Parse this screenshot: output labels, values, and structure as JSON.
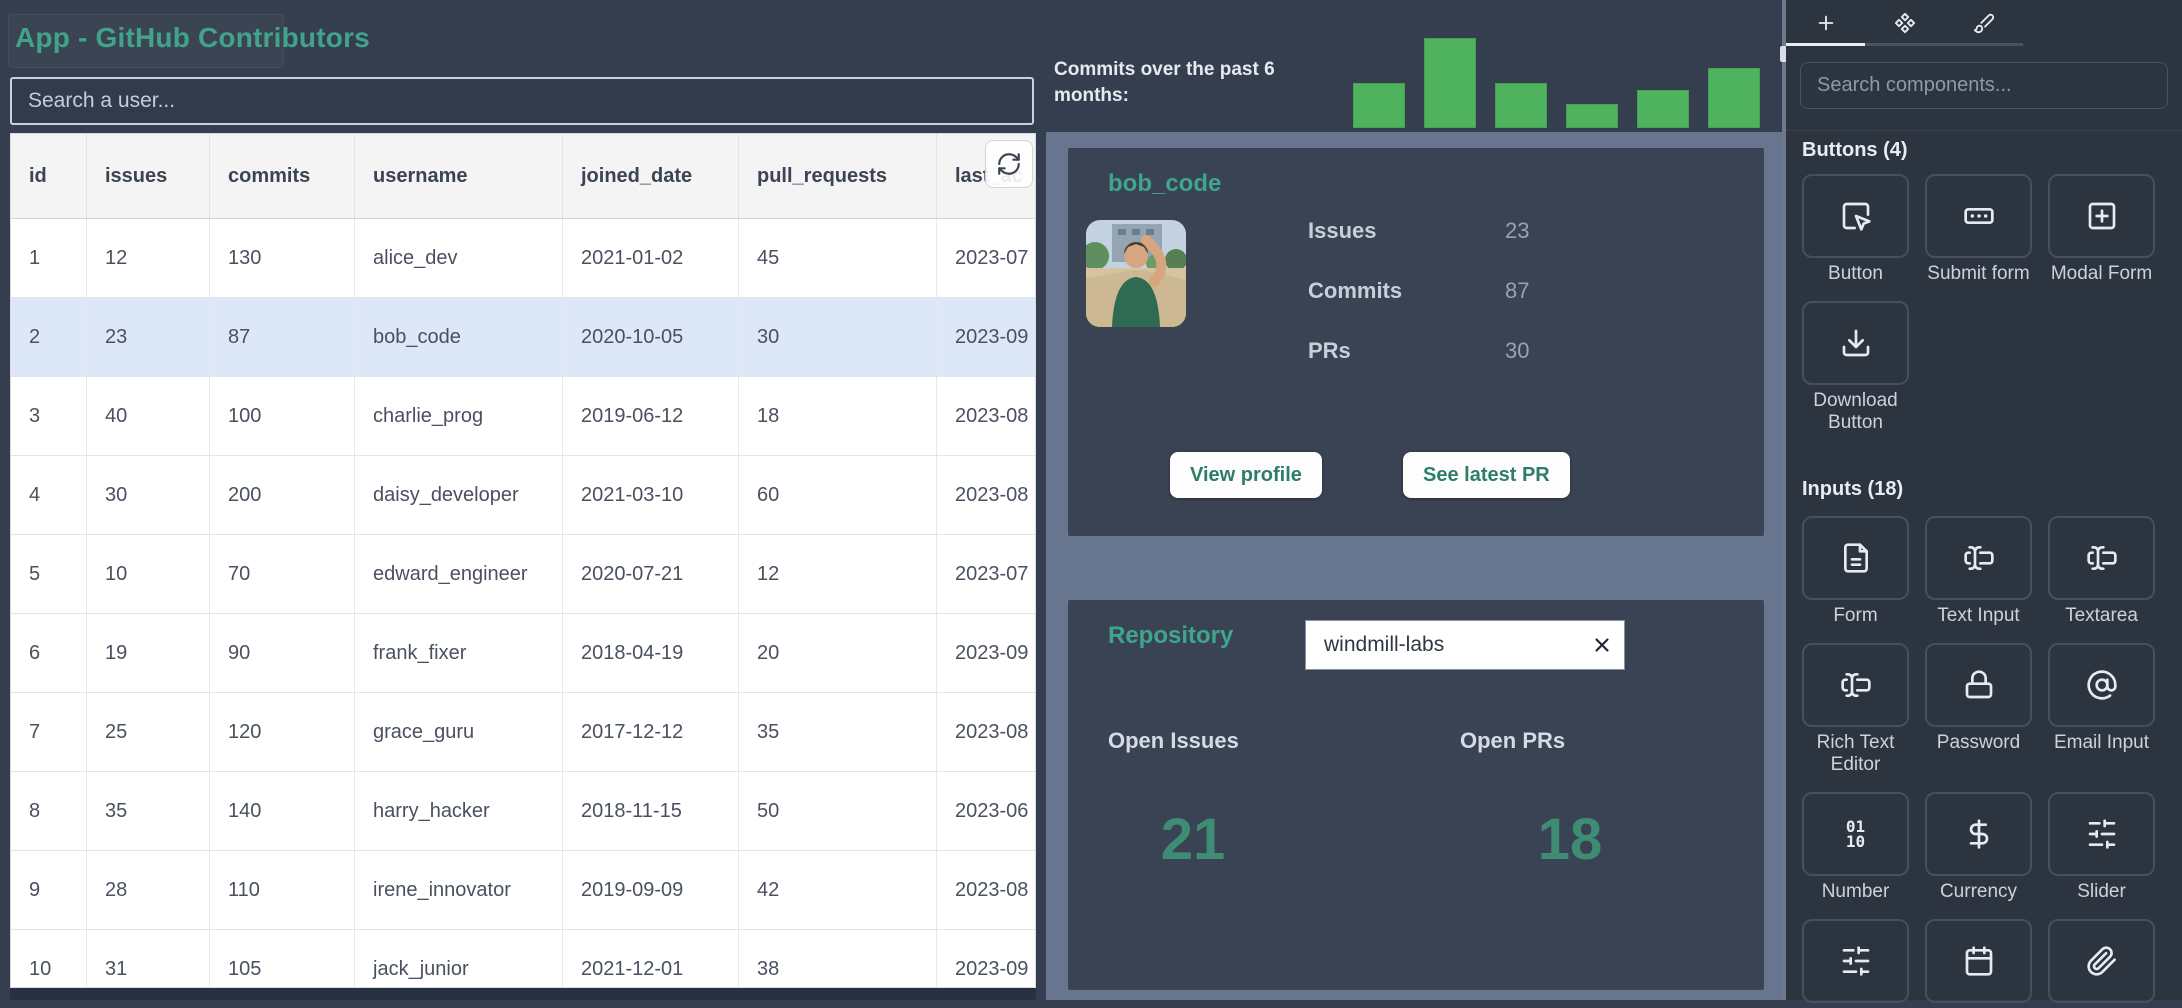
{
  "app": {
    "title": "App - GitHub Contributors"
  },
  "search": {
    "placeholder": "Search a user..."
  },
  "table": {
    "columns": [
      "id",
      "issues",
      "commits",
      "username",
      "joined_date",
      "pull_requests",
      "last_ac"
    ],
    "selected_index": 1,
    "rows": [
      [
        "1",
        "12",
        "130",
        "alice_dev",
        "2021-01-02",
        "45",
        "2023-07"
      ],
      [
        "2",
        "23",
        "87",
        "bob_code",
        "2020-10-05",
        "30",
        "2023-09"
      ],
      [
        "3",
        "40",
        "100",
        "charlie_prog",
        "2019-06-12",
        "18",
        "2023-08"
      ],
      [
        "4",
        "30",
        "200",
        "daisy_developer",
        "2021-03-10",
        "60",
        "2023-08"
      ],
      [
        "5",
        "10",
        "70",
        "edward_engineer",
        "2020-07-21",
        "12",
        "2023-07"
      ],
      [
        "6",
        "19",
        "90",
        "frank_fixer",
        "2018-04-19",
        "20",
        "2023-09"
      ],
      [
        "7",
        "25",
        "120",
        "grace_guru",
        "2017-12-12",
        "35",
        "2023-08"
      ],
      [
        "8",
        "35",
        "140",
        "harry_hacker",
        "2018-11-15",
        "50",
        "2023-06"
      ],
      [
        "9",
        "28",
        "110",
        "irene_innovator",
        "2019-09-09",
        "42",
        "2023-08"
      ],
      [
        "10",
        "31",
        "105",
        "jack_junior",
        "2021-12-01",
        "38",
        "2023-09"
      ]
    ]
  },
  "chart_data": {
    "type": "bar",
    "title": "Commits over the past 6 months:",
    "categories": [
      "",
      "",
      "",
      "",
      "",
      ""
    ],
    "values": [
      45,
      90,
      45,
      24,
      38,
      60
    ],
    "ylim": [
      0,
      90
    ],
    "bar_color": "#4FB25D",
    "grid": false,
    "legend": false
  },
  "user_card": {
    "title": "bob_code",
    "stats": [
      {
        "label": "Issues",
        "value": "23"
      },
      {
        "label": "Commits",
        "value": "87"
      },
      {
        "label": "PRs",
        "value": "30"
      }
    ],
    "buttons": [
      {
        "label": "View profile"
      },
      {
        "label": "See latest PR"
      }
    ]
  },
  "repo_card": {
    "title": "Repository",
    "input_value": "windmill-labs",
    "stats": [
      {
        "label": "Open Issues",
        "value": "21"
      },
      {
        "label": "Open PRs",
        "value": "18"
      }
    ]
  },
  "panel": {
    "tabs": [
      {
        "icon": "plus",
        "active": true
      },
      {
        "icon": "component",
        "active": false
      },
      {
        "icon": "brush",
        "active": false
      }
    ],
    "search_placeholder": "Search components...",
    "buttons_section": {
      "title": "Buttons (4)",
      "items": [
        {
          "label": "Button",
          "icon": "cursor-click"
        },
        {
          "label": "Submit form",
          "icon": "rect-ellipsis"
        },
        {
          "label": "Modal Form",
          "icon": "square-plus"
        },
        {
          "label": "Download Button",
          "icon": "download"
        }
      ]
    },
    "inputs_section": {
      "title": "Inputs (18)",
      "items": [
        {
          "label": "Form",
          "icon": "file-text"
        },
        {
          "label": "Text Input",
          "icon": "text-cursor"
        },
        {
          "label": "Textarea",
          "icon": "text-cursor"
        },
        {
          "label": "Rich Text Editor",
          "icon": "text-cursor"
        },
        {
          "label": "Password",
          "icon": "lock"
        },
        {
          "label": "Email Input",
          "icon": "at-sign"
        },
        {
          "label": "Number",
          "icon": "binary"
        },
        {
          "label": "Currency",
          "icon": "dollar"
        },
        {
          "label": "Slider",
          "icon": "sliders"
        },
        {
          "label": "",
          "icon": "sliders"
        },
        {
          "label": "",
          "icon": "calendar"
        },
        {
          "label": "",
          "icon": "paperclip"
        }
      ]
    }
  },
  "colors": {
    "accent_teal": "#41A38A",
    "bar_green": "#4FB25D",
    "selected_row": "#DCE8F8",
    "band": "#68758E",
    "card": "#3A4353",
    "panel_bg": "#2C3440"
  }
}
